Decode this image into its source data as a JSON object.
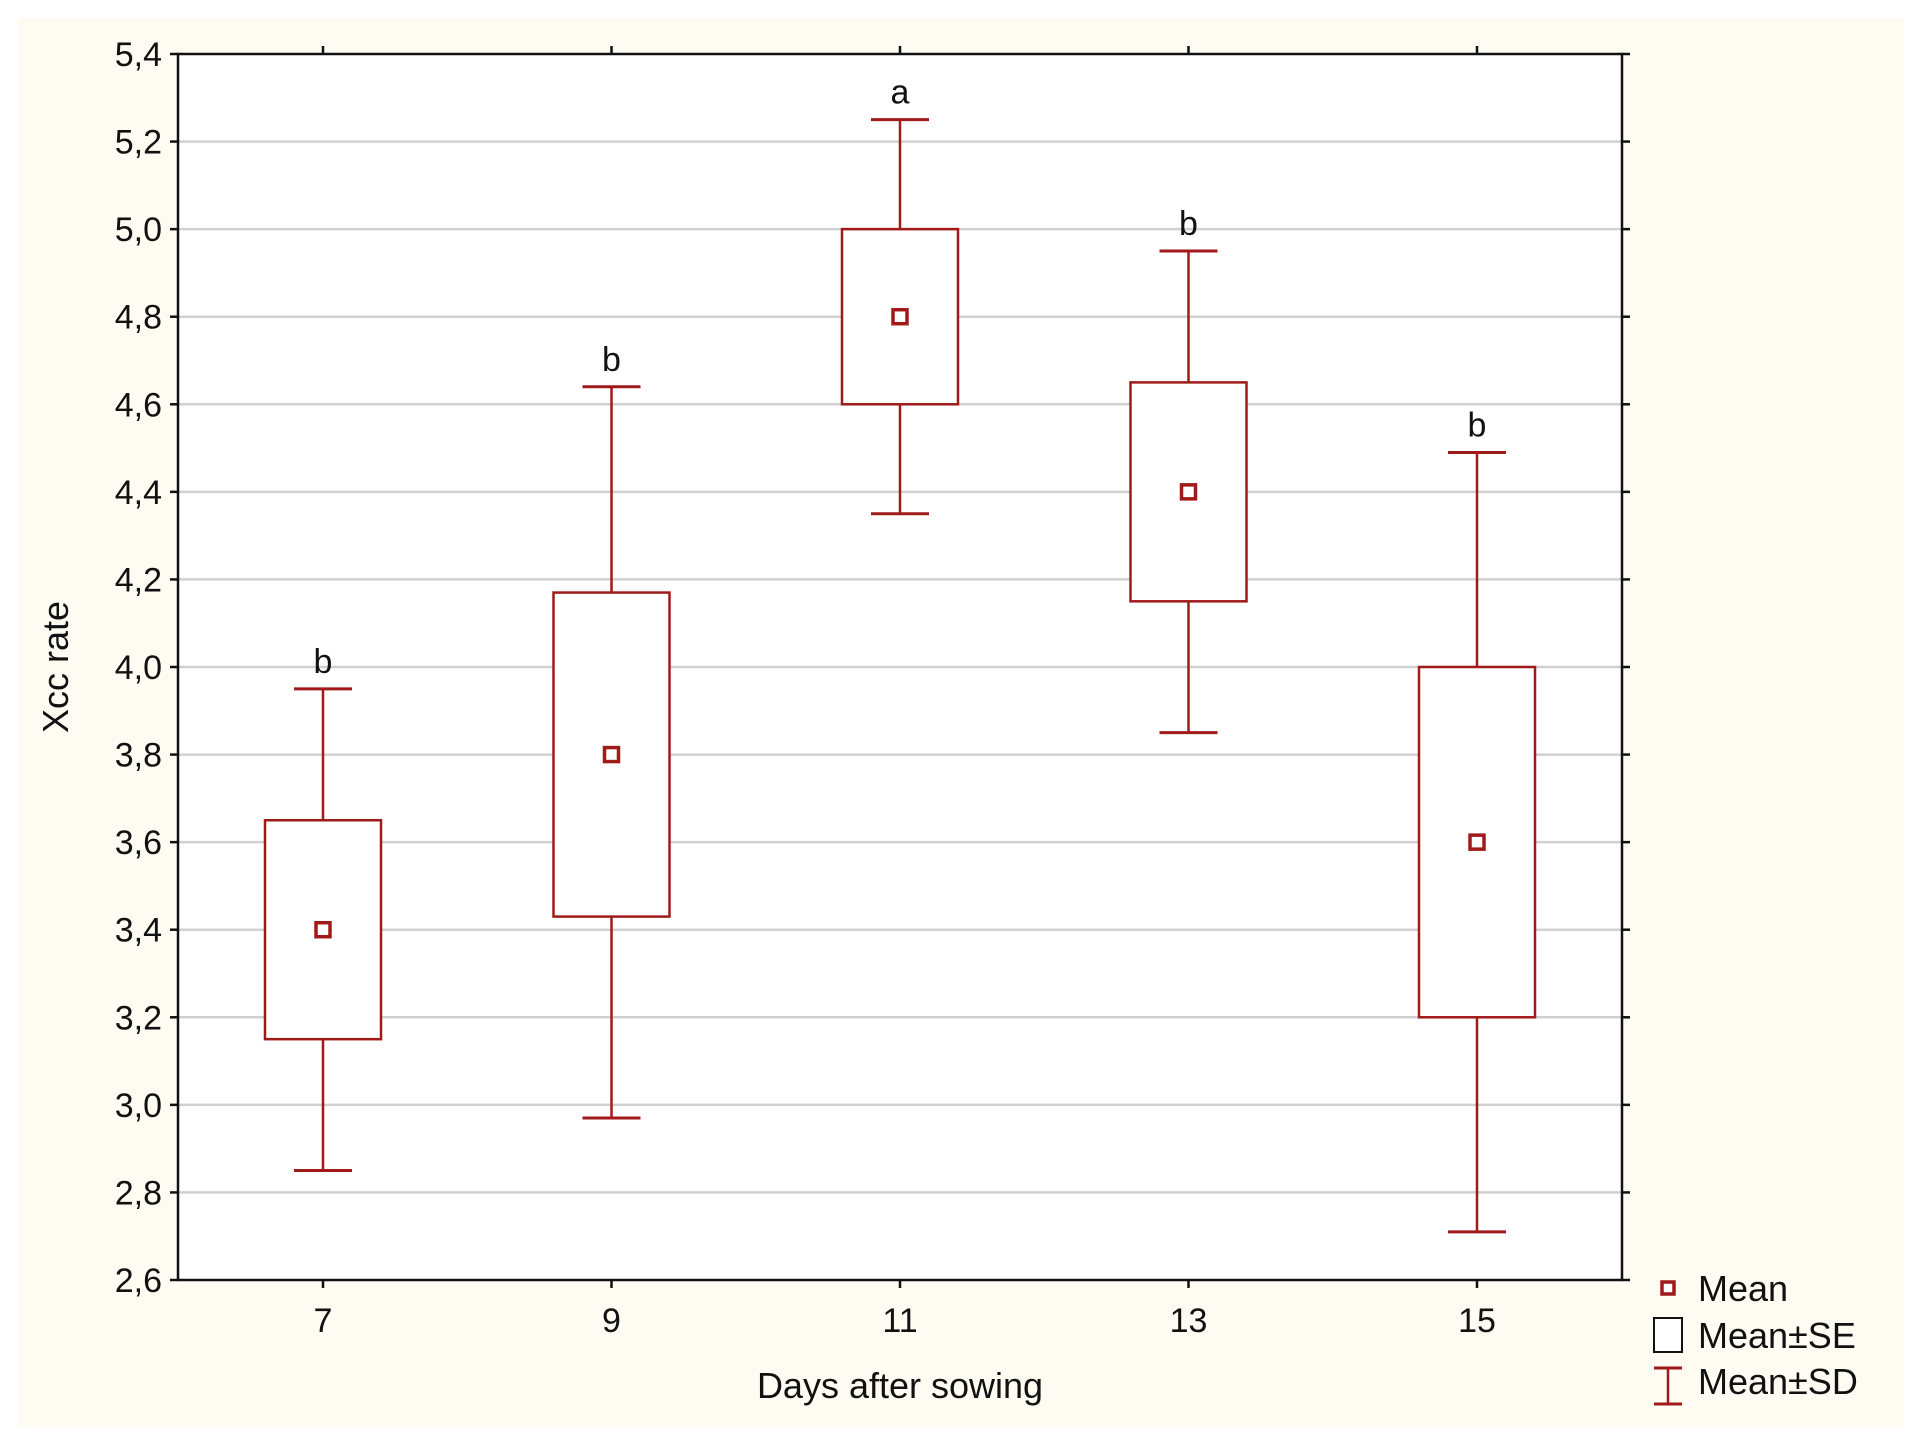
{
  "chart_data": {
    "type": "boxplot",
    "xlabel": "Days after sowing",
    "ylabel": "Xcc rate",
    "ylim": [
      2.6,
      5.4
    ],
    "yticks": [
      "2,6",
      "2,8",
      "3,0",
      "3,2",
      "3,4",
      "3,6",
      "3,8",
      "4,0",
      "4,2",
      "4,4",
      "4,6",
      "4,8",
      "5,0",
      "5,2",
      "5,4"
    ],
    "ytick_values": [
      2.6,
      2.8,
      3.0,
      3.2,
      3.4,
      3.6,
      3.8,
      4.0,
      4.2,
      4.4,
      4.6,
      4.8,
      5.0,
      5.2,
      5.4
    ],
    "grid": true,
    "categories": [
      "7",
      "9",
      "11",
      "13",
      "15"
    ],
    "groups": [
      {
        "category": "7",
        "mean": 3.4,
        "se_low": 3.15,
        "se_high": 3.65,
        "sd_low": 2.85,
        "sd_high": 3.95,
        "significance": "b"
      },
      {
        "category": "9",
        "mean": 3.8,
        "se_low": 3.43,
        "se_high": 4.17,
        "sd_low": 2.97,
        "sd_high": 4.64,
        "significance": "b"
      },
      {
        "category": "11",
        "mean": 4.8,
        "se_low": 4.6,
        "se_high": 5.0,
        "sd_low": 4.35,
        "sd_high": 5.25,
        "significance": "a"
      },
      {
        "category": "13",
        "mean": 4.4,
        "se_low": 4.15,
        "se_high": 4.65,
        "sd_low": 3.85,
        "sd_high": 4.95,
        "significance": "b"
      },
      {
        "category": "15",
        "mean": 3.6,
        "se_low": 3.2,
        "se_high": 4.0,
        "sd_low": 2.71,
        "sd_high": 4.49,
        "significance": "b"
      }
    ],
    "legend": {
      "position": "bottom-right",
      "entries": [
        "Mean",
        "Mean±SE",
        "Mean±SD"
      ]
    },
    "colors": {
      "series": "#a11a1a",
      "grid": "#d0d0d0",
      "frame": "#111111",
      "background": "#fdfbf2",
      "plot_background": "#ffffff"
    }
  }
}
